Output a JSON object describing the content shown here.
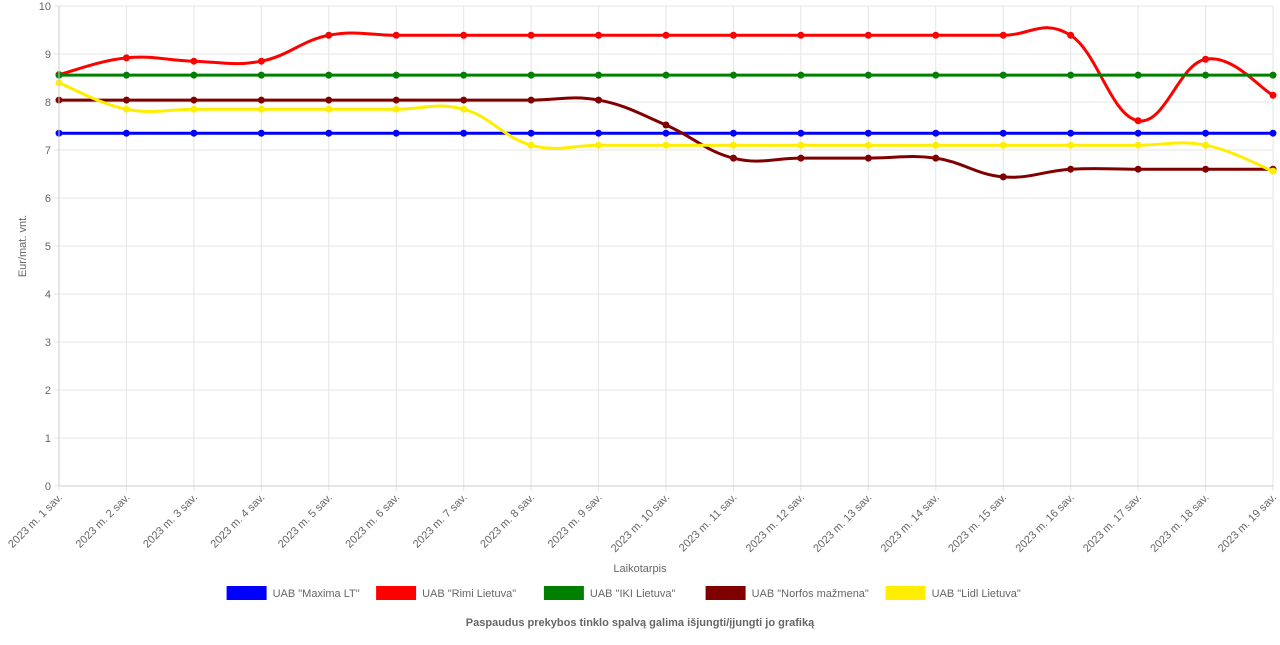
{
  "chart_data": {
    "type": "line",
    "x_label": "Laikotarpis",
    "y_label": "Eur/mat. vnt.",
    "note": "Paspaudus prekybos tinklo spalvą galima išjungti/įjungti jo grafiką",
    "categories": [
      "2023 m. 1 sav.",
      "2023 m. 2 sav.",
      "2023 m. 3 sav.",
      "2023 m. 4 sav.",
      "2023 m. 5 sav.",
      "2023 m. 6 sav.",
      "2023 m. 7 sav.",
      "2023 m. 8 sav.",
      "2023 m. 9 sav.",
      "2023 m. 10 sav.",
      "2023 m. 11 sav.",
      "2023 m. 12 sav.",
      "2023 m. 13 sav.",
      "2023 m. 14 sav.",
      "2023 m. 15 sav.",
      "2023 m. 16 sav.",
      "2023 m. 17 sav.",
      "2023 m. 18 sav.",
      "2023 m. 19 sav."
    ],
    "series": [
      {
        "name": "UAB \"Maxima LT\"",
        "color": "#0000ff",
        "values": [
          7.35,
          7.35,
          7.35,
          7.35,
          7.35,
          7.35,
          7.35,
          7.35,
          7.35,
          7.35,
          7.35,
          7.35,
          7.35,
          7.35,
          7.35,
          7.35,
          7.35,
          7.35,
          7.35
        ]
      },
      {
        "name": "UAB \"Rimi Lietuva\"",
        "color": "#ff0000",
        "values": [
          8.57,
          8.92,
          8.85,
          8.85,
          9.39,
          9.39,
          9.39,
          9.39,
          9.39,
          9.39,
          9.39,
          9.39,
          9.39,
          9.39,
          9.39,
          9.39,
          7.61,
          8.89,
          8.14
        ]
      },
      {
        "name": "UAB \"IKI Lietuva\"",
        "color": "#008000",
        "values": [
          8.56,
          8.56,
          8.56,
          8.56,
          8.56,
          8.56,
          8.56,
          8.56,
          8.56,
          8.56,
          8.56,
          8.56,
          8.56,
          8.56,
          8.56,
          8.56,
          8.56,
          8.56,
          8.56
        ]
      },
      {
        "name": "UAB \"Norfos mažmena\"",
        "color": "#800000",
        "values": [
          8.04,
          8.04,
          8.04,
          8.04,
          8.04,
          8.04,
          8.04,
          8.04,
          8.04,
          7.52,
          6.83,
          6.83,
          6.83,
          6.83,
          6.44,
          6.6,
          6.6,
          6.6,
          6.6
        ]
      },
      {
        "name": "UAB \"Lidl Lietuva\"",
        "color": "#ffee00",
        "values": [
          8.4,
          7.85,
          7.85,
          7.85,
          7.85,
          7.85,
          7.85,
          7.1,
          7.1,
          7.1,
          7.1,
          7.1,
          7.1,
          7.1,
          7.1,
          7.1,
          7.1,
          7.1,
          6.56
        ]
      }
    ],
    "ylim": [
      0,
      10
    ],
    "yticks": [
      0,
      1,
      2,
      3,
      4,
      5,
      6,
      7,
      8,
      9,
      10
    ],
    "grid": true
  }
}
